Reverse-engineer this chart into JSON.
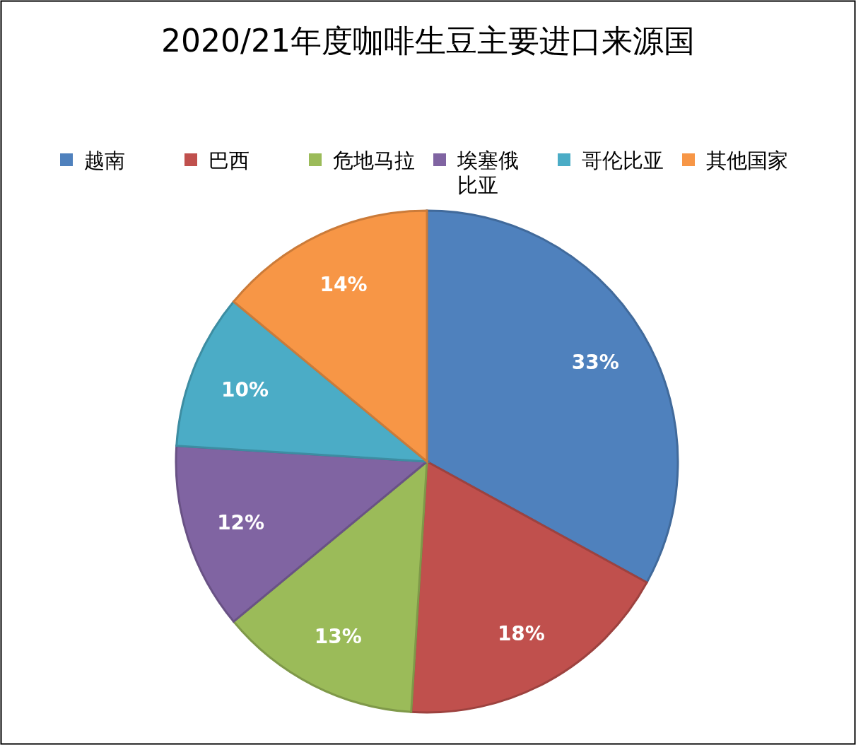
{
  "chart_data": {
    "type": "pie",
    "title": "2020/21年度咖啡生豆主要进口来源国",
    "categories": [
      "越南",
      "巴西",
      "危地马拉",
      "埃塞俄比亚",
      "哥伦比亚",
      "其他国家"
    ],
    "values": [
      33,
      18,
      13,
      12,
      10,
      14
    ],
    "colors": [
      "#4f81bd",
      "#c0504d",
      "#9bbb59",
      "#8064a2",
      "#4bacc6",
      "#f79646"
    ],
    "value_labels": [
      "33%",
      "18%",
      "13%",
      "12%",
      "10%",
      "14%"
    ],
    "legend": "top"
  }
}
